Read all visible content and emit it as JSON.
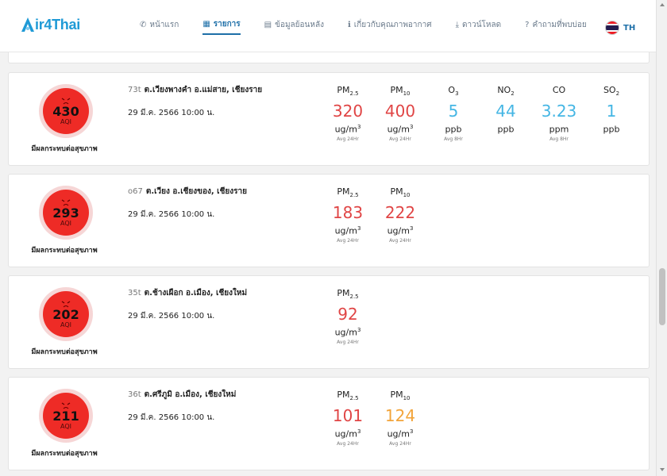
{
  "brand": {
    "name": "ir4Thai"
  },
  "nav": [
    {
      "label": "หน้าแรก",
      "icon": "✆",
      "icon_name": "home-touch-icon",
      "active": false
    },
    {
      "label": "รายการ",
      "icon": "▦",
      "icon_name": "list-grid-icon",
      "active": true
    },
    {
      "label": "ข้อมูลย้อนหลัง",
      "icon": "▤",
      "icon_name": "table-icon",
      "active": false
    },
    {
      "label": "เกี่ยวกับคุณภาพอากาศ",
      "icon": "ℹ",
      "icon_name": "info-icon",
      "active": false
    },
    {
      "label": "ดาวน์โหลด",
      "icon": "⤓",
      "icon_name": "download-icon",
      "active": false
    },
    {
      "label": "คำถามที่พบบ่อย",
      "icon": "?",
      "icon_name": "question-icon",
      "active": false
    }
  ],
  "language": {
    "code": "TH"
  },
  "stations": [
    {
      "code": "73t",
      "name": "ต.เวียงพางคำ อ.แม่สาย, เชียงราย",
      "datetime": "29 มี.ค. 2566 10:00 น.",
      "aqi": "430",
      "aqi_label": "AQI",
      "health": "มีผลกระทบต่อสุขภาพ",
      "pollutants": [
        {
          "name": "PM",
          "sub": "2.5",
          "value": "320",
          "unit": "ug/m",
          "sup": "3",
          "avg": "Avg 24Hr",
          "color": "#e04545"
        },
        {
          "name": "PM",
          "sub": "10",
          "value": "400",
          "unit": "ug/m",
          "sup": "3",
          "avg": "Avg 24Hr",
          "color": "#e04545"
        },
        {
          "name": "O",
          "sub": "3",
          "value": "5",
          "unit": "ppb",
          "sup": "",
          "avg": "Avg 8Hr",
          "color": "#45b6e4"
        },
        {
          "name": "NO",
          "sub": "2",
          "value": "44",
          "unit": "ppb",
          "sup": "",
          "avg": "",
          "color": "#45b6e4"
        },
        {
          "name": "CO",
          "sub": "",
          "value": "3.23",
          "unit": "ppm",
          "sup": "",
          "avg": "Avg 8Hr",
          "color": "#45b6e4"
        },
        {
          "name": "SO",
          "sub": "2",
          "value": "1",
          "unit": "ppb",
          "sup": "",
          "avg": "",
          "color": "#45b6e4"
        }
      ]
    },
    {
      "code": "o67",
      "name": "ต.เวียง อ.เชียงของ, เชียงราย",
      "datetime": "29 มี.ค. 2566 10:00 น.",
      "aqi": "293",
      "aqi_label": "AQI",
      "health": "มีผลกระทบต่อสุขภาพ",
      "pollutants": [
        {
          "name": "PM",
          "sub": "2.5",
          "value": "183",
          "unit": "ug/m",
          "sup": "3",
          "avg": "Avg 24Hr",
          "color": "#e04545"
        },
        {
          "name": "PM",
          "sub": "10",
          "value": "222",
          "unit": "ug/m",
          "sup": "3",
          "avg": "Avg 24Hr",
          "color": "#e04545"
        }
      ]
    },
    {
      "code": "35t",
      "name": "ต.ช้างเผือก อ.เมือง, เชียงใหม่",
      "datetime": "29 มี.ค. 2566 10:00 น.",
      "aqi": "202",
      "aqi_label": "AQI",
      "health": "มีผลกระทบต่อสุขภาพ",
      "pollutants": [
        {
          "name": "PM",
          "sub": "2.5",
          "value": "92",
          "unit": "ug/m",
          "sup": "3",
          "avg": "Avg 24Hr",
          "color": "#e04545"
        }
      ]
    },
    {
      "code": "36t",
      "name": "ต.ศรีภูมิ อ.เมือง, เชียงใหม่",
      "datetime": "29 มี.ค. 2566 10:00 น.",
      "aqi": "211",
      "aqi_label": "AQI",
      "health": "มีผลกระทบต่อสุขภาพ",
      "pollutants": [
        {
          "name": "PM",
          "sub": "2.5",
          "value": "101",
          "unit": "ug/m",
          "sup": "3",
          "avg": "Avg 24Hr",
          "color": "#e04545"
        },
        {
          "name": "PM",
          "sub": "10",
          "value": "124",
          "unit": "ug/m",
          "sup": "3",
          "avg": "Avg 24Hr",
          "color": "#f2a43a"
        }
      ]
    }
  ]
}
